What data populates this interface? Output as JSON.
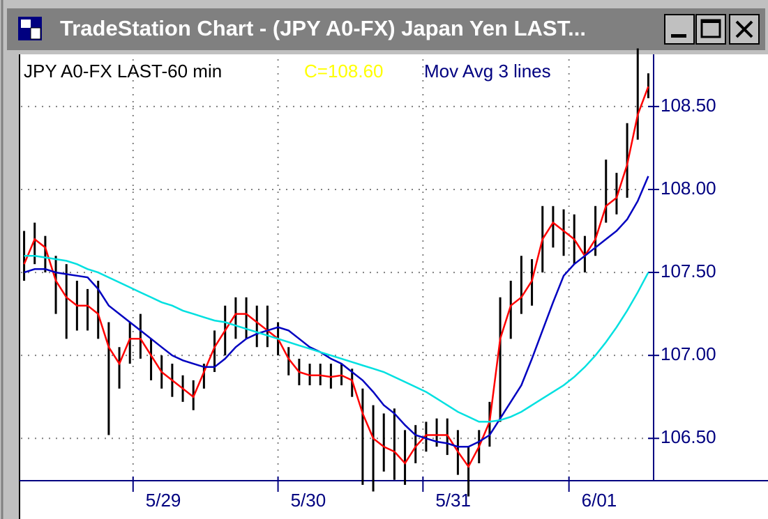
{
  "window": {
    "title": "TradeStation Chart - (JPY A0-FX) Japan Yen LAST..."
  },
  "chart_data": {
    "type": "ohlc",
    "header": {
      "symbol": "JPY A0-FX LAST-60 min",
      "close_label": "C=108.60",
      "indicator": "Mov Avg 3 lines"
    },
    "bars": {
      "color": "#000000",
      "high": [
        107.75,
        107.8,
        107.72,
        107.6,
        107.55,
        107.45,
        107.4,
        107.45,
        107.2,
        107.05,
        107.2,
        107.25,
        107.1,
        107.0,
        106.95,
        106.88,
        106.85,
        106.95,
        107.15,
        107.3,
        107.35,
        107.35,
        107.3,
        107.3,
        107.2,
        107.05,
        106.98,
        106.95,
        106.95,
        106.95,
        106.95,
        106.92,
        106.8,
        106.7,
        106.65,
        106.68,
        106.55,
        106.58,
        106.6,
        106.62,
        106.62,
        106.55,
        106.45,
        106.55,
        106.72,
        107.35,
        107.45,
        107.6,
        107.58,
        107.9,
        107.9,
        107.88,
        107.85,
        107.72,
        107.9,
        108.18,
        108.1,
        108.4,
        108.85,
        108.7
      ],
      "low": [
        107.45,
        107.55,
        107.5,
        107.25,
        107.1,
        107.15,
        107.15,
        107.1,
        106.52,
        106.8,
        106.95,
        106.98,
        106.85,
        106.8,
        106.75,
        106.72,
        106.67,
        106.8,
        106.9,
        107.0,
        107.1,
        107.1,
        107.05,
        107.05,
        107.0,
        106.88,
        106.82,
        106.82,
        106.82,
        106.8,
        106.82,
        106.75,
        106.22,
        106.18,
        106.3,
        106.25,
        106.22,
        106.35,
        106.42,
        106.45,
        106.4,
        106.28,
        106.15,
        106.35,
        106.45,
        106.6,
        107.1,
        107.25,
        107.3,
        107.5,
        107.65,
        107.6,
        107.55,
        107.5,
        107.6,
        107.8,
        107.85,
        107.95,
        108.3,
        108.55
      ]
    },
    "series": [
      {
        "color": "#ff0000",
        "values": [
          107.55,
          107.7,
          107.65,
          107.45,
          107.35,
          107.3,
          107.3,
          107.25,
          107.05,
          106.95,
          107.1,
          107.1,
          107.0,
          106.9,
          106.85,
          106.8,
          106.75,
          106.9,
          107.05,
          107.15,
          107.25,
          107.25,
          107.2,
          107.15,
          107.1,
          106.98,
          106.9,
          106.88,
          106.88,
          106.87,
          106.88,
          106.85,
          106.65,
          106.5,
          106.45,
          106.42,
          106.35,
          106.45,
          106.52,
          106.52,
          106.52,
          106.42,
          106.33,
          106.45,
          106.6,
          107.1,
          107.3,
          107.35,
          107.45,
          107.7,
          107.8,
          107.75,
          107.7,
          107.6,
          107.7,
          107.9,
          107.95,
          108.15,
          108.45,
          108.62
        ]
      },
      {
        "color": "#0000c0",
        "values": [
          107.5,
          107.52,
          107.52,
          107.5,
          107.49,
          107.48,
          107.47,
          107.4,
          107.3,
          107.25,
          107.2,
          107.15,
          107.1,
          107.05,
          107.0,
          106.97,
          106.95,
          106.93,
          106.93,
          106.98,
          107.05,
          107.1,
          107.13,
          107.15,
          107.17,
          107.15,
          107.1,
          107.05,
          107.02,
          106.98,
          106.95,
          106.9,
          106.85,
          106.78,
          106.7,
          106.65,
          106.58,
          106.52,
          106.5,
          106.48,
          106.47,
          106.45,
          106.45,
          106.48,
          106.52,
          106.62,
          106.72,
          106.82,
          106.98,
          107.15,
          107.32,
          107.48,
          107.55,
          107.6,
          107.65,
          107.7,
          107.75,
          107.82,
          107.93,
          108.08
        ]
      },
      {
        "color": "#00e0e0",
        "values": [
          107.6,
          107.6,
          107.59,
          107.58,
          107.57,
          107.55,
          107.52,
          107.5,
          107.47,
          107.44,
          107.41,
          107.38,
          107.35,
          107.32,
          107.3,
          107.27,
          107.25,
          107.23,
          107.21,
          107.2,
          107.18,
          107.16,
          107.14,
          107.12,
          107.1,
          107.08,
          107.06,
          107.04,
          107.02,
          107.0,
          106.98,
          106.96,
          106.94,
          106.92,
          106.9,
          106.87,
          106.84,
          106.81,
          106.78,
          106.74,
          106.7,
          106.66,
          106.63,
          106.6,
          106.6,
          106.61,
          106.63,
          106.66,
          106.7,
          106.74,
          106.78,
          106.82,
          106.87,
          106.93,
          107.0,
          107.08,
          107.17,
          107.27,
          107.38,
          107.5
        ]
      }
    ],
    "ylim": [
      106.245,
      108.785
    ],
    "yticks": [
      {
        "value": 106.5,
        "label": "106.50"
      },
      {
        "value": 107,
        "label": "107.00"
      },
      {
        "value": 107.5,
        "label": "107.50"
      },
      {
        "value": 108,
        "label": "108.00"
      },
      {
        "value": 108.5,
        "label": "108.50"
      }
    ],
    "xlim": [
      -0.3,
      59.5
    ],
    "xticks": [
      {
        "value": 10.3,
        "label": "5/29"
      },
      {
        "value": 24,
        "label": "5/30"
      },
      {
        "value": 37.7,
        "label": "5/31"
      },
      {
        "value": 51.5,
        "label": "6/01"
      }
    ],
    "grid": true
  }
}
